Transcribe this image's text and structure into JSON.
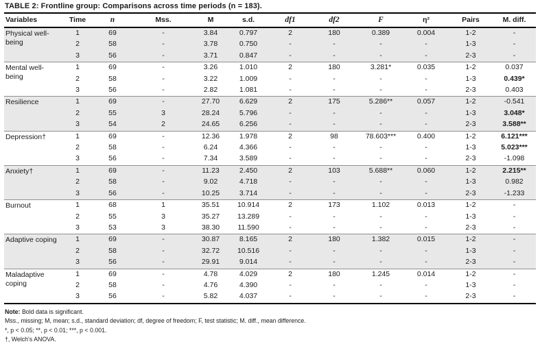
{
  "title": {
    "label": "TABLE 2:",
    "text": "Frontline group: Comparisons across time periods (n = 183)."
  },
  "table": {
    "columns": [
      {
        "key": "variable",
        "label": "Variables"
      },
      {
        "key": "time",
        "label": "Time"
      },
      {
        "key": "n",
        "label": "n",
        "stat": true
      },
      {
        "key": "mss",
        "label": "Mss."
      },
      {
        "key": "m",
        "label": "M"
      },
      {
        "key": "sd",
        "label": "s.d."
      },
      {
        "key": "df1",
        "label": "df1",
        "stat": true
      },
      {
        "key": "df2",
        "label": "df2",
        "stat": true
      },
      {
        "key": "f",
        "label": "F",
        "stat": true
      },
      {
        "key": "eta2",
        "label": "η²"
      },
      {
        "key": "pairs",
        "label": "Pairs"
      },
      {
        "key": "mdiff",
        "label": "M. diff."
      }
    ],
    "groups": [
      {
        "variable": "Physical well-being",
        "shaded": true,
        "rows": [
          {
            "time": "1",
            "n": "69",
            "mss": "-",
            "m": "3.84",
            "sd": "0.797",
            "df1": "2",
            "df2": "180",
            "f": "0.389",
            "eta2": "0.004",
            "pairs": "1-2",
            "mdiff": "-",
            "mdiff_bold": false
          },
          {
            "time": "2",
            "n": "58",
            "mss": "-",
            "m": "3.78",
            "sd": "0.750",
            "df1": "-",
            "df2": "-",
            "f": "-",
            "eta2": "-",
            "pairs": "1-3",
            "mdiff": "-",
            "mdiff_bold": false
          },
          {
            "time": "3",
            "n": "56",
            "mss": "-",
            "m": "3.71",
            "sd": "0.847",
            "df1": "-",
            "df2": "-",
            "f": "-",
            "eta2": "-",
            "pairs": "2-3",
            "mdiff": "-",
            "mdiff_bold": false
          }
        ]
      },
      {
        "variable": "Mental well-being",
        "shaded": false,
        "rows": [
          {
            "time": "1",
            "n": "69",
            "mss": "-",
            "m": "3.26",
            "sd": "1.010",
            "df1": "2",
            "df2": "180",
            "f": "3.281*",
            "eta2": "0.035",
            "pairs": "1-2",
            "mdiff": "0.037",
            "mdiff_bold": false
          },
          {
            "time": "2",
            "n": "58",
            "mss": "-",
            "m": "3.22",
            "sd": "1.009",
            "df1": "-",
            "df2": "-",
            "f": "-",
            "eta2": "-",
            "pairs": "1-3",
            "mdiff": "0.439*",
            "mdiff_bold": true
          },
          {
            "time": "3",
            "n": "56",
            "mss": "-",
            "m": "2.82",
            "sd": "1.081",
            "df1": "-",
            "df2": "-",
            "f": "-",
            "eta2": "-",
            "pairs": "2-3",
            "mdiff": "0.403",
            "mdiff_bold": false
          }
        ]
      },
      {
        "variable": "Resilience",
        "shaded": true,
        "rows": [
          {
            "time": "1",
            "n": "69",
            "mss": "-",
            "m": "27.70",
            "sd": "6.629",
            "df1": "2",
            "df2": "175",
            "f": "5.286**",
            "eta2": "0.057",
            "pairs": "1-2",
            "mdiff": "-0.541",
            "mdiff_bold": false
          },
          {
            "time": "2",
            "n": "55",
            "mss": "3",
            "m": "28.24",
            "sd": "5.796",
            "df1": "-",
            "df2": "-",
            "f": "-",
            "eta2": "-",
            "pairs": "1-3",
            "mdiff": "3.048*",
            "mdiff_bold": true
          },
          {
            "time": "3",
            "n": "54",
            "mss": "2",
            "m": "24.65",
            "sd": "6.256",
            "df1": "-",
            "df2": "-",
            "f": "-",
            "eta2": "-",
            "pairs": "2-3",
            "mdiff": "3.588**",
            "mdiff_bold": true
          }
        ]
      },
      {
        "variable": "Depression†",
        "shaded": false,
        "rows": [
          {
            "time": "1",
            "n": "69",
            "mss": "-",
            "m": "12.36",
            "sd": "1.978",
            "df1": "2",
            "df2": "98",
            "f": "78.603***",
            "eta2": "0.400",
            "pairs": "1-2",
            "mdiff": "6.121***",
            "mdiff_bold": true
          },
          {
            "time": "2",
            "n": "58",
            "mss": "-",
            "m": "6.24",
            "sd": "4.366",
            "df1": "-",
            "df2": "-",
            "f": "-",
            "eta2": "-",
            "pairs": "1-3",
            "mdiff": "5.023***",
            "mdiff_bold": true
          },
          {
            "time": "3",
            "n": "56",
            "mss": "-",
            "m": "7.34",
            "sd": "3.589",
            "df1": "-",
            "df2": "-",
            "f": "-",
            "eta2": "-",
            "pairs": "2-3",
            "mdiff": "-1.098",
            "mdiff_bold": false
          }
        ]
      },
      {
        "variable": "Anxiety†",
        "shaded": true,
        "rows": [
          {
            "time": "1",
            "n": "69",
            "mss": "-",
            "m": "11.23",
            "sd": "2.450",
            "df1": "2",
            "df2": "103",
            "f": "5.688**",
            "eta2": "0.060",
            "pairs": "1-2",
            "mdiff": "2.215**",
            "mdiff_bold": true
          },
          {
            "time": "2",
            "n": "58",
            "mss": "-",
            "m": "9.02",
            "sd": "4.718",
            "df1": "-",
            "df2": "-",
            "f": "-",
            "eta2": "-",
            "pairs": "1-3",
            "mdiff": "0.982",
            "mdiff_bold": false
          },
          {
            "time": "3",
            "n": "56",
            "mss": "-",
            "m": "10.25",
            "sd": "3.714",
            "df1": "-",
            "df2": "-",
            "f": "-",
            "eta2": "-",
            "pairs": "2-3",
            "mdiff": "-1.233",
            "mdiff_bold": false
          }
        ]
      },
      {
        "variable": "Burnout",
        "shaded": false,
        "rows": [
          {
            "time": "1",
            "n": "68",
            "mss": "1",
            "m": "35.51",
            "sd": "10.914",
            "df1": "2",
            "df2": "173",
            "f": "1.102",
            "eta2": "0.013",
            "pairs": "1-2",
            "mdiff": "-",
            "mdiff_bold": false
          },
          {
            "time": "2",
            "n": "55",
            "mss": "3",
            "m": "35.27",
            "sd": "13.289",
            "df1": "-",
            "df2": "-",
            "f": "-",
            "eta2": "-",
            "pairs": "1-3",
            "mdiff": "-",
            "mdiff_bold": false
          },
          {
            "time": "3",
            "n": "53",
            "mss": "3",
            "m": "38.30",
            "sd": "11.590",
            "df1": "-",
            "df2": "-",
            "f": "-",
            "eta2": "-",
            "pairs": "2-3",
            "mdiff": "-",
            "mdiff_bold": false
          }
        ]
      },
      {
        "variable": "Adaptive coping",
        "shaded": true,
        "rows": [
          {
            "time": "1",
            "n": "69",
            "mss": "-",
            "m": "30.87",
            "sd": "8.165",
            "df1": "2",
            "df2": "180",
            "f": "1.382",
            "eta2": "0.015",
            "pairs": "1-2",
            "mdiff": "-",
            "mdiff_bold": false
          },
          {
            "time": "2",
            "n": "58",
            "mss": "-",
            "m": "32.72",
            "sd": "10.516",
            "df1": "-",
            "df2": "-",
            "f": "-",
            "eta2": "-",
            "pairs": "1-3",
            "mdiff": "-",
            "mdiff_bold": false
          },
          {
            "time": "3",
            "n": "56",
            "mss": "-",
            "m": "29.91",
            "sd": "9.014",
            "df1": "-",
            "df2": "-",
            "f": "-",
            "eta2": "-",
            "pairs": "2-3",
            "mdiff": "-",
            "mdiff_bold": false
          }
        ]
      },
      {
        "variable": "Maladaptive coping",
        "shaded": false,
        "rows": [
          {
            "time": "1",
            "n": "69",
            "mss": "-",
            "m": "4.78",
            "sd": "4.029",
            "df1": "2",
            "df2": "180",
            "f": "1.245",
            "eta2": "0.014",
            "pairs": "1-2",
            "mdiff": "-",
            "mdiff_bold": false
          },
          {
            "time": "2",
            "n": "58",
            "mss": "-",
            "m": "4.76",
            "sd": "4.390",
            "df1": "-",
            "df2": "-",
            "f": "-",
            "eta2": "-",
            "pairs": "1-3",
            "mdiff": "-",
            "mdiff_bold": false
          },
          {
            "time": "3",
            "n": "56",
            "mss": "-",
            "m": "5.82",
            "sd": "4.037",
            "df1": "-",
            "df2": "-",
            "f": "-",
            "eta2": "-",
            "pairs": "2-3",
            "mdiff": "-",
            "mdiff_bold": false
          }
        ]
      }
    ]
  },
  "footnotes": {
    "note_label": "Note:",
    "note_text": "Bold data is significant.",
    "abbreviations": "Mss., missing; M, mean; s.d., standard deviation; df, degree of freedom; F, test statistic; M. diff., mean difference.",
    "significance": "*, p < 0.05; **, p < 0.01; ***, p < 0.001.",
    "welch": "†, Welch's ANOVA."
  },
  "colors": {
    "shaded_row": "#e8e8e8",
    "rule": "#000000",
    "group_separator": "#8f8f8f"
  }
}
